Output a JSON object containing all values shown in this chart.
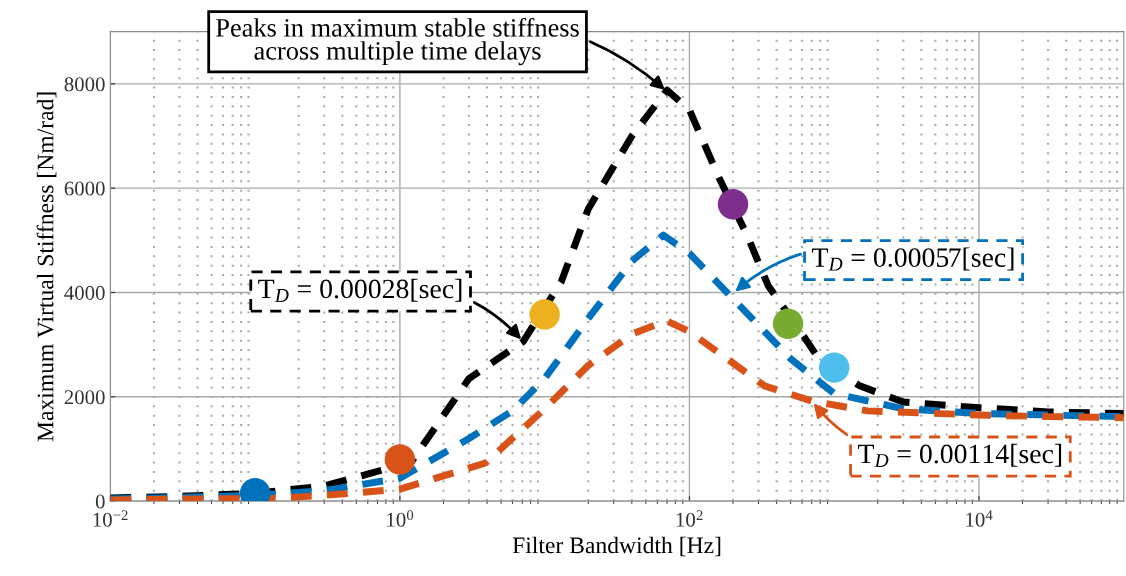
{
  "chart_data": {
    "type": "line",
    "xlabel": "Filter Bandwidth [Hz]",
    "ylabel": "Maximum Virtual Stiffness [Nm/rad]",
    "log": "x",
    "grid": true,
    "line_style": "dashed",
    "marker": "none",
    "xlim": [
      0.01,
      100000
    ],
    "ylim": [
      0,
      9000
    ],
    "xticks": [
      {
        "value": 0.01,
        "label": "10$^{−2}$"
      },
      {
        "value": 1,
        "label": "10$^{0}$"
      },
      {
        "value": 100,
        "label": "10$^{2}$"
      },
      {
        "value": 10000,
        "label": "10$^{4}$"
      }
    ],
    "yticks": [
      0,
      2000,
      4000,
      6000,
      8000
    ],
    "series": [
      {
        "color": "#000000",
        "x": [
          0.01,
          0.03,
          0.1,
          0.3,
          1.2,
          3,
          7.1,
          13,
          20,
          40,
          70,
          100,
          160,
          250,
          350,
          620,
          780,
          1500,
          3000,
          10000,
          30000,
          100000
        ],
        "values": [
          60,
          90,
          150,
          290,
          750,
          2350,
          3060,
          4200,
          5600,
          7000,
          7880,
          7500,
          6200,
          5100,
          4130,
          3150,
          2730,
          2210,
          1900,
          1790,
          1710,
          1680
        ]
      },
      {
        "color": "#0072bd",
        "x": [
          0.01,
          0.03,
          0.1,
          0.3,
          1,
          3,
          6,
          10,
          20,
          40,
          66,
          100,
          200,
          500,
          1000,
          3000,
          10000,
          30000,
          100000
        ],
        "values": [
          40,
          70,
          110,
          200,
          440,
          1200,
          1730,
          2350,
          3500,
          4600,
          5100,
          4750,
          3880,
          2730,
          2060,
          1770,
          1680,
          1650,
          1620
        ]
      },
      {
        "color": "#d95319",
        "x": [
          0.01,
          0.03,
          0.13,
          0.3,
          1,
          3.9,
          10,
          20,
          40,
          69,
          100,
          330,
          700,
          1700,
          10000,
          30000,
          100000
        ],
        "values": [
          20,
          40,
          50,
          110,
          230,
          730,
          1770,
          2600,
          3200,
          3460,
          3250,
          2210,
          1920,
          1730,
          1650,
          1620,
          1600
        ]
      },
      {
        "type": "scatter",
        "marker": "circle",
        "x": [
          0.1,
          1,
          10,
          200,
          480,
          1000
        ],
        "values": [
          150,
          800,
          3580,
          5690,
          3400,
          2560
        ],
        "colors": [
          "#0072bd",
          "#d95319",
          "#edb120",
          "#7e2f8e",
          "#77ac30",
          "#4dbeee"
        ]
      }
    ],
    "annotations": [
      {
        "text": "Peaks in maximum stable stiffness\nacross multiple time delays",
        "x": 70,
        "y": 7850
      },
      {
        "text": "T$_{D}$ = 0.00028[sec]",
        "x": 7.1,
        "y": 3060
      },
      {
        "text": "T$_{D}$ = 0.00057[sec]",
        "x": 200,
        "y": 3980
      },
      {
        "text": "T$_{D}$ = 0.00114[sec]",
        "x": 700,
        "y": 1920
      }
    ]
  }
}
